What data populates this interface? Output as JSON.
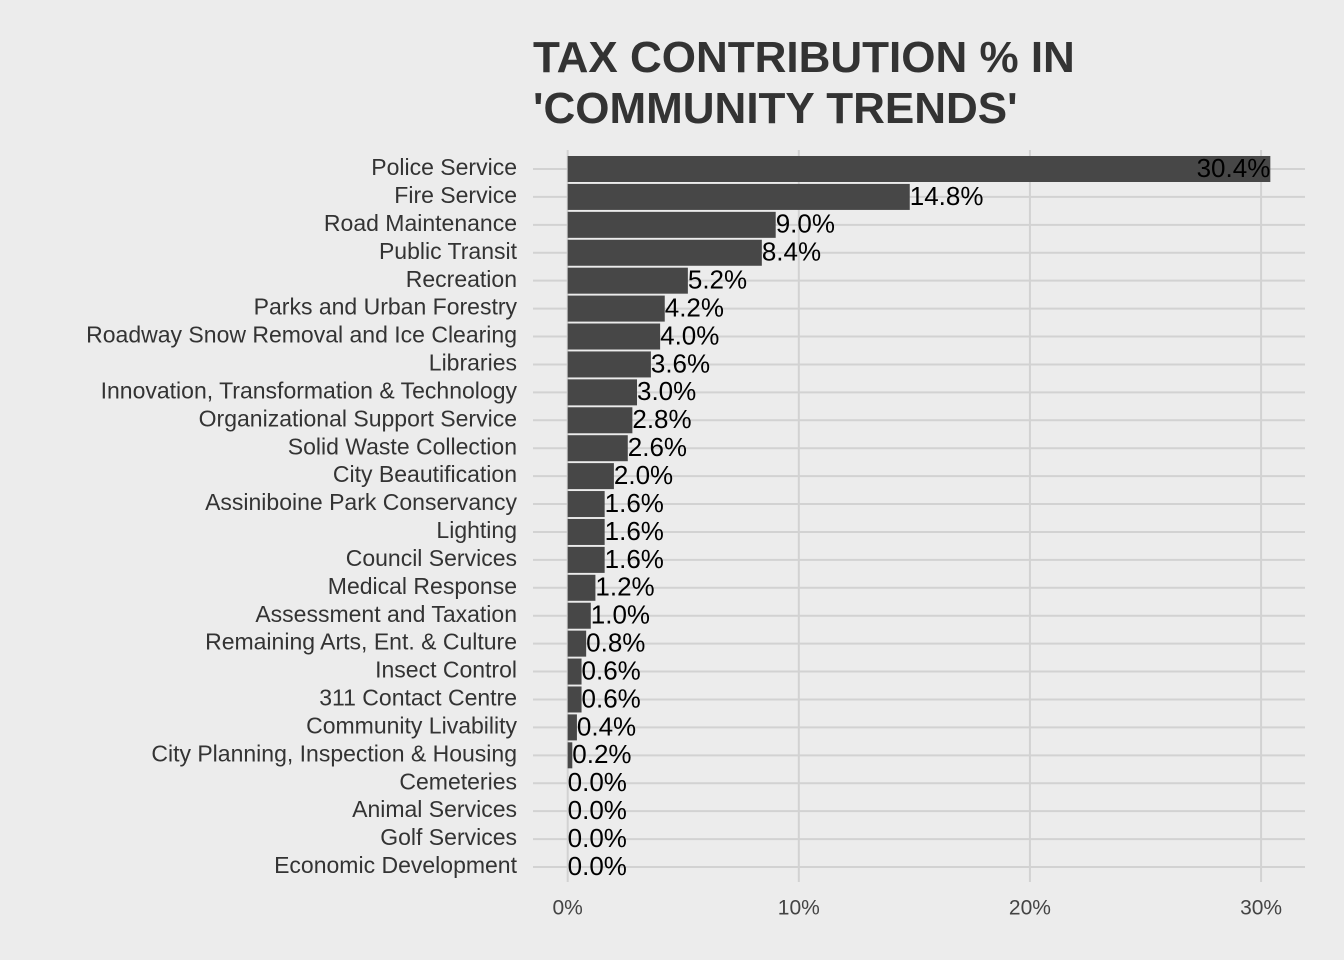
{
  "chart_data": {
    "type": "bar",
    "orientation": "horizontal",
    "title": [
      "TAX CONTRIBUTION % IN",
      "'COMMUNITY TRENDS'"
    ],
    "categories": [
      "Police Service",
      "Fire Service",
      "Road Maintenance",
      "Public Transit",
      "Recreation",
      "Parks and Urban Forestry",
      "Roadway Snow Removal and Ice Clearing",
      "Libraries",
      "Innovation, Transformation & Technology",
      "Organizational Support Service",
      "Solid Waste Collection",
      "City Beautification",
      "Assiniboine Park Conservancy",
      "Lighting",
      "Council Services",
      "Medical Response",
      "Assessment and Taxation",
      "Remaining Arts, Ent. & Culture",
      "Insect Control",
      "311 Contact Centre",
      "Community Livability",
      "City Planning, Inspection & Housing",
      "Cemeteries",
      "Animal Services",
      "Golf Services",
      "Economic Development"
    ],
    "values": [
      30.4,
      14.8,
      9.0,
      8.4,
      5.2,
      4.2,
      4.0,
      3.6,
      3.0,
      2.8,
      2.6,
      2.0,
      1.6,
      1.6,
      1.6,
      1.2,
      1.0,
      0.8,
      0.6,
      0.6,
      0.4,
      0.2,
      0.0,
      0.0,
      0.0,
      0.0
    ],
    "value_labels": [
      "30.4%",
      "14.8%",
      "9.0%",
      "8.4%",
      "5.2%",
      "4.2%",
      "4.0%",
      "3.6%",
      "3.0%",
      "2.8%",
      "2.6%",
      "2.0%",
      "1.6%",
      "1.6%",
      "1.6%",
      "1.2%",
      "1.0%",
      "0.8%",
      "0.6%",
      "0.6%",
      "0.4%",
      "0.2%",
      "0.0%",
      "0.0%",
      "0.0%",
      "0.0%"
    ],
    "color": "#474747",
    "xlim": [
      -1.5,
      31.9
    ],
    "xticks": [
      {
        "value": 0,
        "label": "0%"
      },
      {
        "value": 10,
        "label": "10%"
      },
      {
        "value": 20,
        "label": "20%"
      },
      {
        "value": 30,
        "label": "30%"
      }
    ],
    "grid": true
  }
}
